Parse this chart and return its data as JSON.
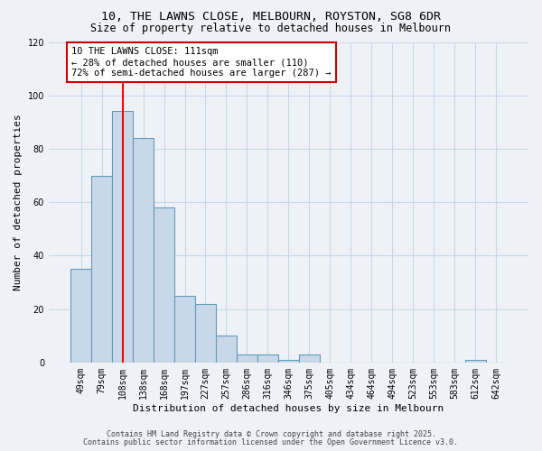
{
  "title1": "10, THE LAWNS CLOSE, MELBOURN, ROYSTON, SG8 6DR",
  "title2": "Size of property relative to detached houses in Melbourn",
  "xlabel": "Distribution of detached houses by size in Melbourn",
  "ylabel": "Number of detached properties",
  "bar_values": [
    35,
    70,
    94,
    84,
    58,
    25,
    22,
    10,
    3,
    3,
    1,
    3,
    0,
    0,
    0,
    0,
    0,
    0,
    0,
    1,
    0
  ],
  "bin_labels": [
    "49sqm",
    "79sqm",
    "108sqm",
    "138sqm",
    "168sqm",
    "197sqm",
    "227sqm",
    "257sqm",
    "286sqm",
    "316sqm",
    "346sqm",
    "375sqm",
    "405sqm",
    "434sqm",
    "464sqm",
    "494sqm",
    "523sqm",
    "553sqm",
    "583sqm",
    "612sqm",
    "642sqm"
  ],
  "bar_color": "#c8d8e8",
  "bar_edge_color": "#6699bb",
  "red_line_index": 2,
  "annotation_text": "10 THE LAWNS CLOSE: 111sqm\n← 28% of detached houses are smaller (110)\n72% of semi-detached houses are larger (287) →",
  "annotation_box_color": "#ffffff",
  "annotation_box_edge_color": "#cc0000",
  "ylim": [
    0,
    120
  ],
  "yticks": [
    0,
    20,
    40,
    60,
    80,
    100,
    120
  ],
  "grid_color": "#c8d8e8",
  "background_color": "#eef2f7",
  "footer1": "Contains HM Land Registry data © Crown copyright and database right 2025.",
  "footer2": "Contains public sector information licensed under the Open Government Licence v3.0.",
  "title_fontsize": 9.5,
  "subtitle_fontsize": 8.5,
  "axis_label_fontsize": 8,
  "tick_fontsize": 7,
  "annotation_fontsize": 7.5
}
